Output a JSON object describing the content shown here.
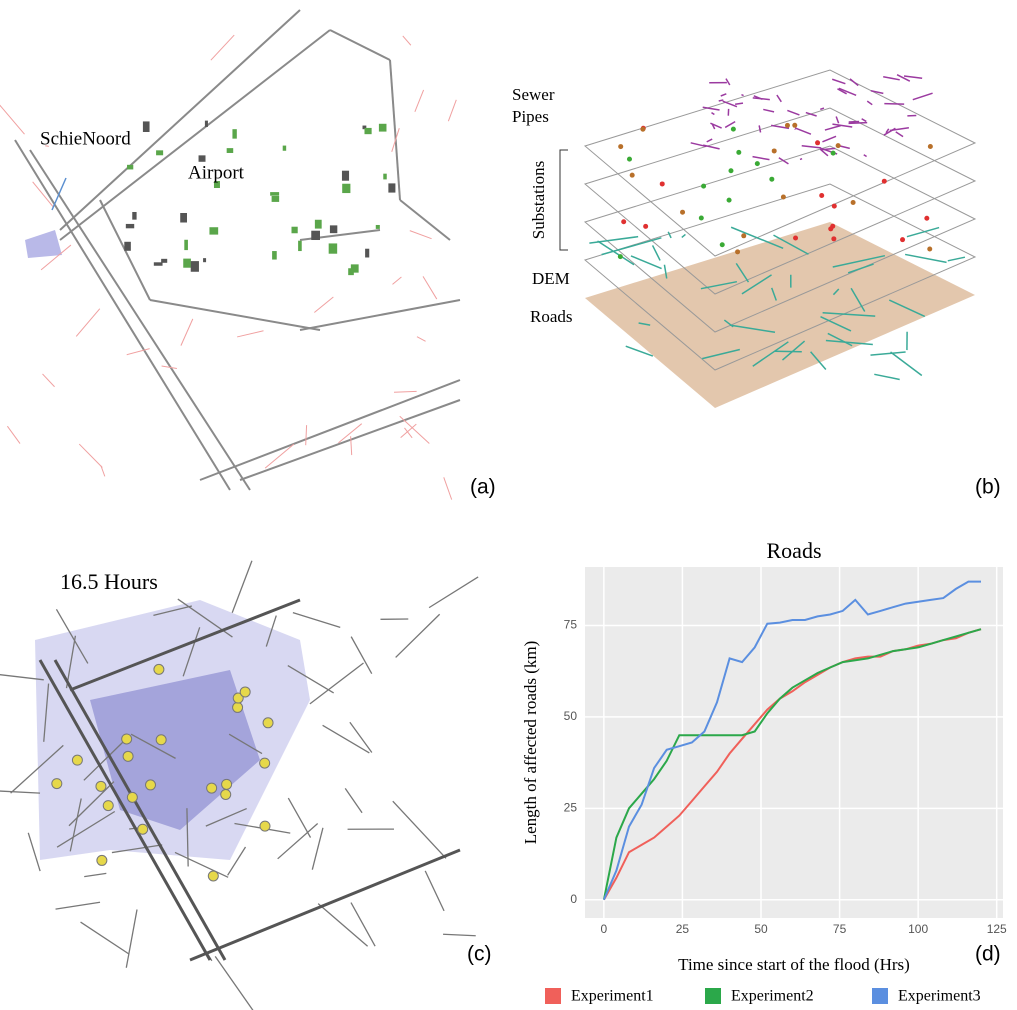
{
  "panel_a": {
    "labels": [
      "SchieNoord",
      "Airport"
    ],
    "tag": "(a)"
  },
  "panel_b": {
    "labels": [
      "Sewer",
      "Pipes",
      "Substations",
      "DEM",
      "Roads"
    ],
    "tag": "(b)"
  },
  "panel_c": {
    "label": "16.5 Hours",
    "tag": "(c)"
  },
  "panel_d": {
    "tag": "(d)"
  },
  "chart_data": {
    "type": "line",
    "title": "Roads",
    "x_label": "Time since start of the flood (Hrs)",
    "y_label": "Length of affected roads (km)",
    "x": [
      0,
      4,
      8,
      12,
      16,
      20,
      24,
      28,
      32,
      36,
      40,
      44,
      48,
      52,
      56,
      60,
      64,
      68,
      72,
      76,
      80,
      84,
      88,
      92,
      96,
      100,
      104,
      108,
      112,
      116,
      120
    ],
    "series": [
      {
        "name": "Experiment1",
        "color": "#f0605a",
        "values": [
          0,
          6,
          13,
          15,
          17,
          20,
          23,
          27,
          31,
          35,
          40,
          44,
          48,
          52,
          55,
          57,
          59.5,
          61.5,
          63.5,
          65,
          66,
          66.5,
          66.5,
          68,
          68.5,
          69.5,
          70,
          71,
          71.5,
          73,
          74
        ]
      },
      {
        "name": "Experiment2",
        "color": "#2ba84a",
        "values": [
          0,
          17,
          25,
          29,
          33,
          38,
          45,
          45,
          45,
          45,
          45,
          45,
          46,
          51,
          55,
          58,
          60,
          62,
          63.5,
          65,
          65.5,
          66,
          67,
          68,
          68.5,
          69,
          70,
          71,
          72,
          73,
          74
        ]
      },
      {
        "name": "Experiment3",
        "color": "#5b8fe0",
        "values": [
          0,
          8,
          20,
          26,
          36,
          41,
          42,
          43,
          46,
          54,
          66,
          65,
          69,
          75.5,
          75.8,
          76.5,
          76.5,
          77.5,
          78,
          79,
          82,
          78,
          79,
          80,
          81,
          81.5,
          82,
          82.5,
          85,
          87,
          87
        ]
      }
    ],
    "xlim": [
      -6,
      127
    ],
    "ylim": [
      -5,
      91
    ],
    "xticks": [
      0,
      25,
      50,
      75,
      100,
      125
    ],
    "yticks": [
      0,
      25,
      50,
      75
    ],
    "grid": true
  }
}
